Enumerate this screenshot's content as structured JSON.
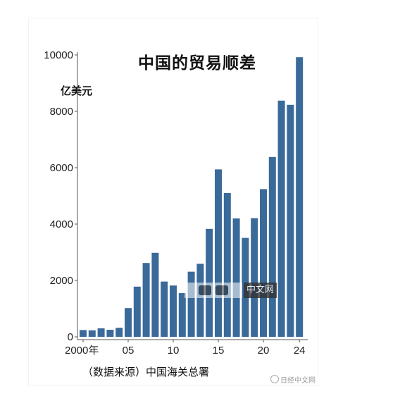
{
  "chart_data": {
    "type": "bar",
    "title": "中国的贸易顺差",
    "ylabel": "亿美元",
    "source": "（数据来源）中国海关总署",
    "ylim": [
      0,
      10000
    ],
    "yticks": [
      0,
      2000,
      4000,
      6000,
      8000,
      10000
    ],
    "x": [
      2000,
      2001,
      2002,
      2003,
      2004,
      2005,
      2006,
      2007,
      2008,
      2009,
      2010,
      2011,
      2012,
      2013,
      2014,
      2015,
      2016,
      2017,
      2018,
      2019,
      2020,
      2021,
      2022,
      2023,
      2024
    ],
    "xtick_labels": [
      {
        "year": 2000,
        "label": "2000年"
      },
      {
        "year": 2005,
        "label": "05"
      },
      {
        "year": 2010,
        "label": "10"
      },
      {
        "year": 2015,
        "label": "15"
      },
      {
        "year": 2020,
        "label": "20"
      },
      {
        "year": 2024,
        "label": "24"
      }
    ],
    "values": [
      240,
      230,
      300,
      250,
      320,
      1020,
      1780,
      2620,
      2980,
      1960,
      1820,
      1550,
      2310,
      2590,
      3830,
      5940,
      5100,
      4200,
      3510,
      4210,
      5240,
      6380,
      8380,
      8230,
      9920
    ],
    "bar_color": "#3a6a99",
    "grid": false
  },
  "watermark": {
    "text": "中文网",
    "weibo": "日经中文网"
  }
}
